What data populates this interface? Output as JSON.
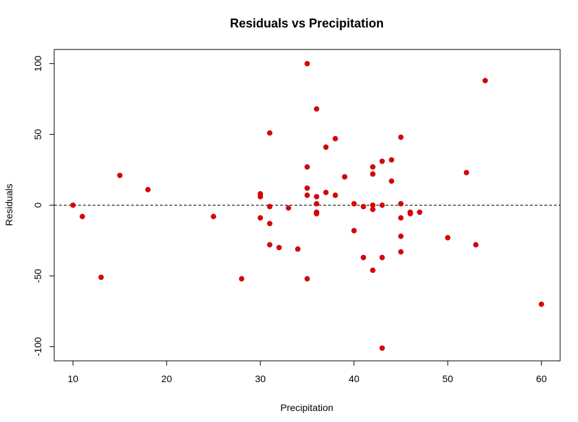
{
  "chart_data": {
    "type": "scatter",
    "title": "Residuals vs Precipitation",
    "xlabel": "Precipitation",
    "ylabel": "Residuals",
    "xlim": [
      8,
      62
    ],
    "ylim": [
      -110,
      110
    ],
    "x_ticks": [
      10,
      20,
      30,
      40,
      50,
      60
    ],
    "y_ticks": [
      -100,
      -50,
      0,
      50,
      100
    ],
    "reference_line": {
      "y": 0,
      "style": "dashed"
    },
    "point_color": "#e00000",
    "grid": false,
    "points": [
      {
        "x": 10,
        "y": 0
      },
      {
        "x": 11,
        "y": -8
      },
      {
        "x": 13,
        "y": -51
      },
      {
        "x": 15,
        "y": 21
      },
      {
        "x": 18,
        "y": 11
      },
      {
        "x": 25,
        "y": -8
      },
      {
        "x": 28,
        "y": -52
      },
      {
        "x": 30,
        "y": 8
      },
      {
        "x": 30,
        "y": 6
      },
      {
        "x": 30,
        "y": -9
      },
      {
        "x": 31,
        "y": 51
      },
      {
        "x": 31,
        "y": -1
      },
      {
        "x": 31,
        "y": -13
      },
      {
        "x": 31,
        "y": -28
      },
      {
        "x": 32,
        "y": -30
      },
      {
        "x": 33,
        "y": -2
      },
      {
        "x": 34,
        "y": -31
      },
      {
        "x": 35,
        "y": 100
      },
      {
        "x": 35,
        "y": 27
      },
      {
        "x": 35,
        "y": 12
      },
      {
        "x": 35,
        "y": 7
      },
      {
        "x": 35,
        "y": -52
      },
      {
        "x": 36,
        "y": 68
      },
      {
        "x": 36,
        "y": 6
      },
      {
        "x": 36,
        "y": 1
      },
      {
        "x": 36,
        "y": -5
      },
      {
        "x": 36,
        "y": -6
      },
      {
        "x": 37,
        "y": 41
      },
      {
        "x": 37,
        "y": 9
      },
      {
        "x": 38,
        "y": 47
      },
      {
        "x": 38,
        "y": 7
      },
      {
        "x": 39,
        "y": 20
      },
      {
        "x": 40,
        "y": 1
      },
      {
        "x": 40,
        "y": -18
      },
      {
        "x": 41,
        "y": -1
      },
      {
        "x": 41,
        "y": -37
      },
      {
        "x": 42,
        "y": 27
      },
      {
        "x": 42,
        "y": 22
      },
      {
        "x": 42,
        "y": 0
      },
      {
        "x": 42,
        "y": -3
      },
      {
        "x": 42,
        "y": -46
      },
      {
        "x": 43,
        "y": 31
      },
      {
        "x": 43,
        "y": 0
      },
      {
        "x": 43,
        "y": -37
      },
      {
        "x": 43,
        "y": -101
      },
      {
        "x": 44,
        "y": 32
      },
      {
        "x": 44,
        "y": 17
      },
      {
        "x": 45,
        "y": 48
      },
      {
        "x": 45,
        "y": 1
      },
      {
        "x": 45,
        "y": -9
      },
      {
        "x": 45,
        "y": -22
      },
      {
        "x": 45,
        "y": -33
      },
      {
        "x": 46,
        "y": -5
      },
      {
        "x": 46,
        "y": -6
      },
      {
        "x": 47,
        "y": -5
      },
      {
        "x": 50,
        "y": -23
      },
      {
        "x": 52,
        "y": 23
      },
      {
        "x": 53,
        "y": -28
      },
      {
        "x": 54,
        "y": 88
      },
      {
        "x": 60,
        "y": -70
      }
    ]
  }
}
